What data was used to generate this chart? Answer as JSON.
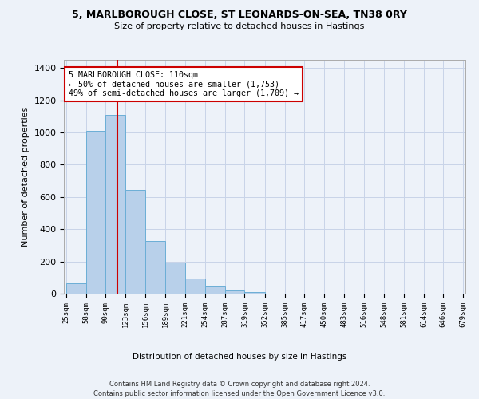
{
  "title1": "5, MARLBOROUGH CLOSE, ST LEONARDS-ON-SEA, TN38 0RY",
  "title2": "Size of property relative to detached houses in Hastings",
  "xlabel": "Distribution of detached houses by size in Hastings",
  "ylabel": "Number of detached properties",
  "footnote1": "Contains HM Land Registry data © Crown copyright and database right 2024.",
  "footnote2": "Contains public sector information licensed under the Open Government Licence v3.0.",
  "bar_left_edges": [
    25,
    58,
    90,
    123,
    156,
    189,
    221,
    254,
    287,
    319,
    352,
    385,
    417,
    450,
    483,
    516,
    548,
    581,
    614,
    646
  ],
  "bar_heights": [
    62,
    1010,
    1110,
    645,
    325,
    193,
    93,
    47,
    22,
    10,
    0,
    0,
    0,
    0,
    0,
    0,
    0,
    0,
    0,
    0
  ],
  "bar_color": "#b8d0ea",
  "bar_edge_color": "#6baed6",
  "grid_color": "#c8d4e8",
  "bg_color": "#edf2f9",
  "vline_x": 110,
  "vline_color": "#cc0000",
  "annotation_text": "5 MARLBOROUGH CLOSE: 110sqm\n← 50% of detached houses are smaller (1,753)\n49% of semi-detached houses are larger (1,709) →",
  "ylim": [
    0,
    1450
  ],
  "tick_labels": [
    "25sqm",
    "58sqm",
    "90sqm",
    "123sqm",
    "156sqm",
    "189sqm",
    "221sqm",
    "254sqm",
    "287sqm",
    "319sqm",
    "352sqm",
    "385sqm",
    "417sqm",
    "450sqm",
    "483sqm",
    "516sqm",
    "548sqm",
    "581sqm",
    "614sqm",
    "646sqm",
    "679sqm"
  ]
}
